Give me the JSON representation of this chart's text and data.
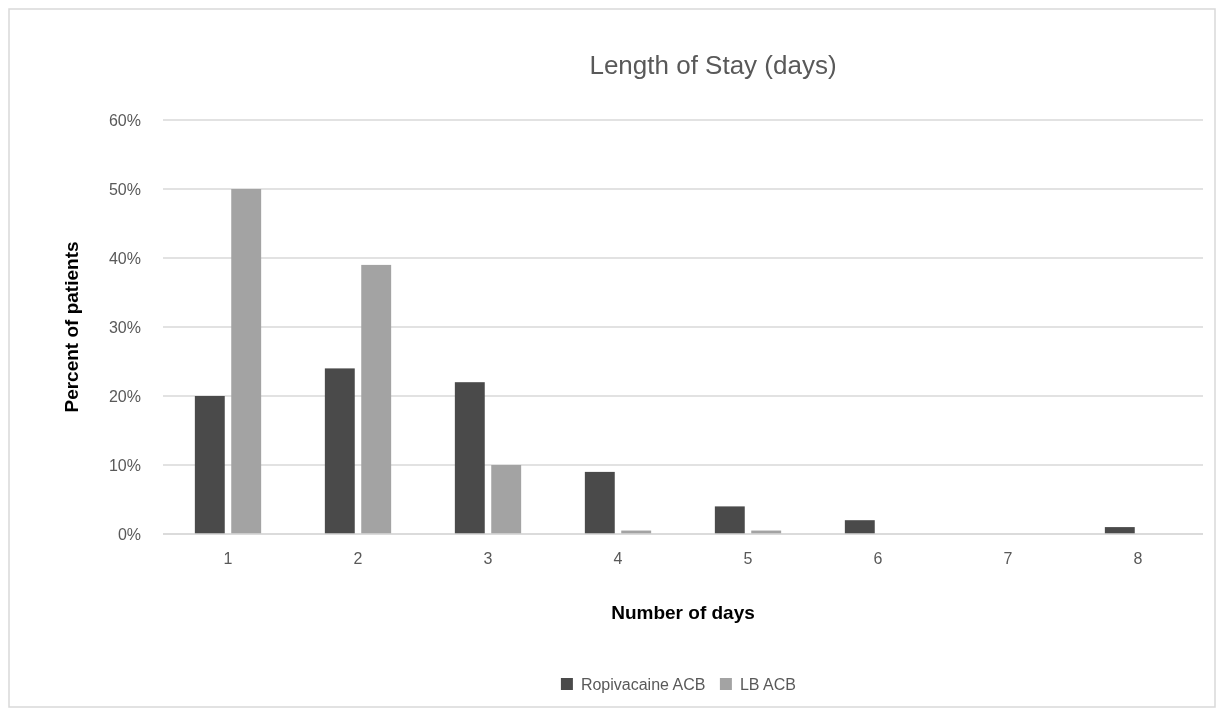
{
  "chart_data": {
    "type": "bar",
    "title": "Length of Stay (days)",
    "xlabel": "Number of days",
    "ylabel": "Percent of patients",
    "categories": [
      "1",
      "2",
      "3",
      "4",
      "5",
      "6",
      "7",
      "8"
    ],
    "series": [
      {
        "name": "Ropivacaine ACB",
        "color": "#4a4a4a",
        "values": [
          20,
          24,
          22,
          9,
          4,
          2,
          0,
          1
        ]
      },
      {
        "name": "LB ACB",
        "color": "#a3a3a3",
        "values": [
          50,
          39,
          10,
          0.5,
          0.5,
          0,
          0,
          0
        ]
      }
    ],
    "ylim": [
      0,
      60
    ],
    "yticks": [
      {
        "value": 0,
        "label": "0%"
      },
      {
        "value": 10,
        "label": "10%"
      },
      {
        "value": 20,
        "label": "20%"
      },
      {
        "value": 30,
        "label": "30%"
      },
      {
        "value": 40,
        "label": "40%"
      },
      {
        "value": 50,
        "label": "50%"
      },
      {
        "value": 60,
        "label": "60%"
      }
    ],
    "grid": "y",
    "legend": "bottom"
  }
}
